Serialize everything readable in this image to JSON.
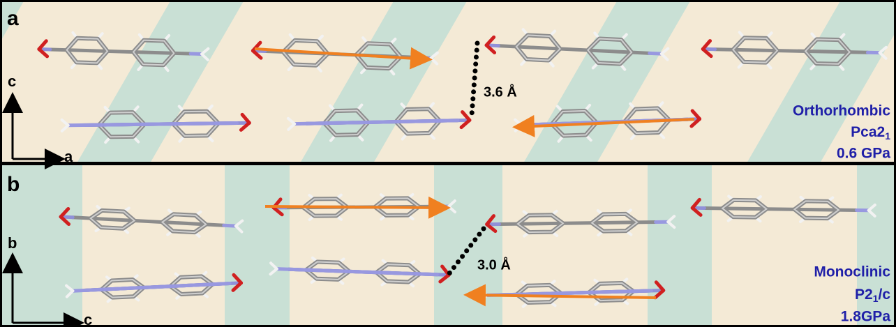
{
  "panels": [
    {
      "label": "a",
      "axes": {
        "vertical": "c",
        "horizontal": "a"
      },
      "distance": "3.6 Å",
      "phase": "Orthorhombic",
      "space_group": [
        "Pca2",
        "1"
      ],
      "pressure": "0.6 GPa"
    },
    {
      "label": "b",
      "axes": {
        "vertical": "b",
        "horizontal": "c"
      },
      "distance": "3.0 Å",
      "phase": "Monoclinic",
      "space_group": [
        "P2",
        "1",
        "/c"
      ],
      "pressure": "1.8GPa"
    }
  ]
}
